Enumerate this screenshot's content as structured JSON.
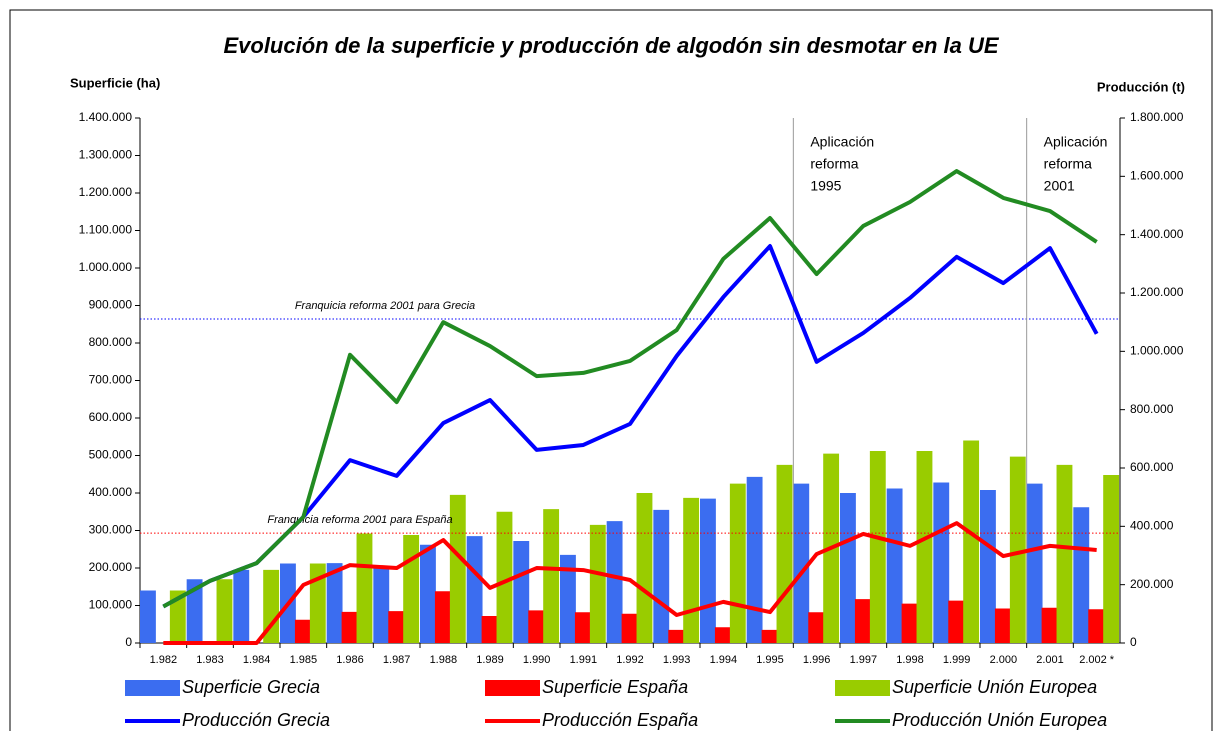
{
  "chart_data": {
    "type": "bar_line",
    "title": "Evolución de la superficie y producción de algodón sin desmotar en la UE",
    "y_label": "Superficie (ha)",
    "y2_label": "Producción (t)",
    "categories": [
      "1.982",
      "1.983",
      "1.984",
      "1.985",
      "1.986",
      "1.987",
      "1.988",
      "1.989",
      "1.990",
      "1.991",
      "1.992",
      "1.993",
      "1.994",
      "1.995",
      "1.996",
      "1.997",
      "1.998",
      "1.999",
      "2.000",
      "2.001",
      "2.002 *"
    ],
    "series": [
      {
        "name": "Superficie Grecia",
        "kind": "bar",
        "color": "#3b6df0",
        "values": [
          140000,
          170000,
          195000,
          212000,
          213000,
          200000,
          262000,
          285000,
          272000,
          235000,
          325000,
          355000,
          385000,
          443000,
          425000,
          400000,
          412000,
          428000,
          408000,
          425000,
          362000
        ]
      },
      {
        "name": "Superficie España",
        "kind": "bar",
        "color": "#ff0000",
        "values": [
          0,
          0,
          0,
          62000,
          83000,
          85000,
          138000,
          72000,
          87000,
          82000,
          78000,
          35000,
          42000,
          35000,
          82000,
          117000,
          105000,
          113000,
          92000,
          94000,
          90000
        ]
      },
      {
        "name": "Superficie Unión Europea",
        "kind": "bar",
        "color": "#99cc00",
        "values": [
          140000,
          170000,
          195000,
          212000,
          292000,
          288000,
          395000,
          350000,
          357000,
          315000,
          400000,
          387000,
          425000,
          475000,
          505000,
          512000,
          512000,
          540000,
          497000,
          475000,
          448000
        ]
      },
      {
        "name": "Producción Grecia",
        "kind": "line",
        "axis": "y2",
        "color": "#0000ff",
        "values": [
          125000,
          213000,
          274000,
          432000,
          627000,
          573000,
          754000,
          833000,
          662000,
          679000,
          751000,
          984000,
          1186000,
          1361000,
          964000,
          1063000,
          1183000,
          1324000,
          1234000,
          1354000,
          1060000
        ]
      },
      {
        "name": "Producción España",
        "kind": "line",
        "axis": "y2",
        "color": "#ff0000",
        "values": [
          0,
          0,
          0,
          199000,
          267000,
          257000,
          353000,
          189000,
          257000,
          250000,
          216000,
          96000,
          141000,
          106000,
          305000,
          374000,
          333000,
          411000,
          298000,
          333000,
          319000
        ]
      },
      {
        "name": "Producción Unión Europea",
        "kind": "line",
        "axis": "y2",
        "color": "#228b22",
        "values": [
          125000,
          213000,
          274000,
          432000,
          988000,
          826000,
          1100000,
          1018000,
          915000,
          926000,
          967000,
          1073000,
          1317000,
          1457000,
          1265000,
          1430000,
          1512000,
          1618000,
          1526000,
          1481000,
          1375000
        ]
      }
    ],
    "ylim": [
      0,
      1400000
    ],
    "yticks": [
      0,
      {
        "value": 100000,
        "label": "100.000"
      },
      {
        "value": 200000,
        "label": "200.000"
      },
      {
        "value": 300000,
        "label": "300.000"
      },
      {
        "value": 400000,
        "label": "400.000"
      },
      {
        "value": 500000,
        "label": "500.000"
      },
      {
        "value": 600000,
        "label": "600.000"
      },
      {
        "value": 700000,
        "label": "700.000"
      },
      {
        "value": 800000,
        "label": "800.000"
      },
      {
        "value": 900000,
        "label": "900.000"
      },
      {
        "value": 1000000,
        "label": "1.000.000"
      },
      {
        "value": 1100000,
        "label": "1.100.000"
      },
      {
        "value": 1200000,
        "label": "1.200.000"
      },
      {
        "value": 1300000,
        "label": "1.300.000"
      },
      {
        "value": 1400000,
        "label": "1.400.000"
      }
    ],
    "y2lim": [
      0,
      1800000
    ],
    "y2ticks": [
      0,
      {
        "value": 200000,
        "label": "200.000"
      },
      {
        "value": 400000,
        "label": "400.000"
      },
      {
        "value": 600000,
        "label": "600.000"
      },
      {
        "value": 800000,
        "label": "800.000"
      },
      {
        "value": 1000000,
        "label": "1.000.000"
      },
      {
        "value": 1200000,
        "label": "1.200.000"
      },
      {
        "value": 1400000,
        "label": "1.400.000"
      },
      {
        "value": 1600000,
        "label": "1.600.000"
      },
      {
        "value": 1800000,
        "label": "1.800.000"
      }
    ],
    "reference_lines": [
      {
        "label": "Franquicia reforma 2001 para Grecia",
        "value": 864000,
        "color": "#0000ff"
      },
      {
        "label": "Franquicia reforma 2001 para España",
        "value": 293000,
        "color": "#ff0000"
      }
    ],
    "annotations": [
      {
        "after": "1.995",
        "lines": [
          "Aplicación",
          "reforma",
          "1995"
        ]
      },
      {
        "after": "2.000",
        "lines": [
          "Aplicación",
          "reforma",
          "2001"
        ]
      }
    ]
  }
}
